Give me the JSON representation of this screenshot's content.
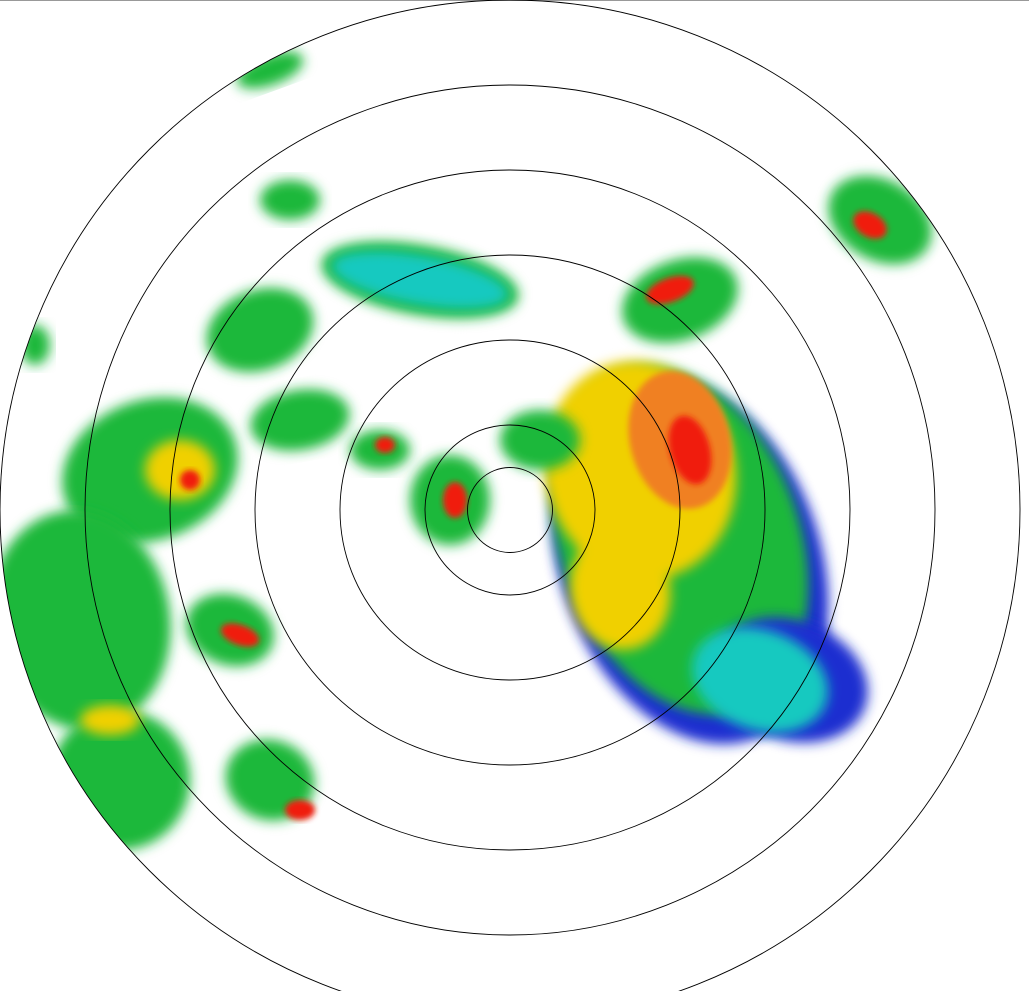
{
  "radar": {
    "colors": {
      "ring": "#000000",
      "very_light": "#1a2fd0",
      "light": "#17c9c0",
      "moderate": "#1fb83a",
      "moderate_high": "#7ad13a",
      "heavy": "#f0d000",
      "very_heavy": "#f08020",
      "intense": "#f01a10"
    },
    "range_ring_count": 7
  }
}
